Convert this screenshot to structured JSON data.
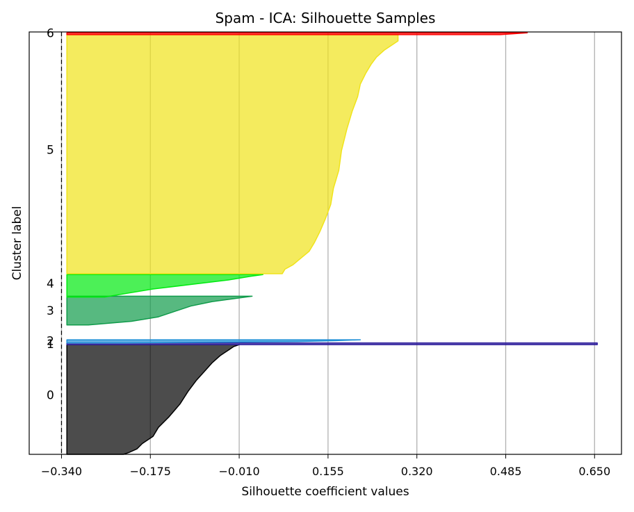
{
  "chart_data": {
    "type": "silhouette",
    "title": "Spam - ICA: Silhouette Samples",
    "xlabel": "Silhouette coefficient values",
    "ylabel": "Cluster label",
    "xlim": [
      -0.4,
      0.7
    ],
    "ylim": [
      0,
      4700
    ],
    "x_ticks": [
      -0.34,
      -0.175,
      -0.01,
      0.155,
      0.32,
      0.485,
      0.65
    ],
    "x_tick_labels": [
      "−0.340",
      "−0.175",
      "−0.010",
      "0.155",
      "0.320",
      "0.485",
      "0.650"
    ],
    "grid": "vertical",
    "average_line": -0.34,
    "clusters": [
      {
        "label": "0",
        "color": "#000000",
        "y_lower": 0,
        "y_upper": 1220,
        "label_y": 660,
        "profile": [
          [
            0,
            -0.225
          ],
          [
            20,
            -0.215
          ],
          [
            60,
            -0.2
          ],
          [
            120,
            -0.19
          ],
          [
            200,
            -0.17
          ],
          [
            300,
            -0.16
          ],
          [
            420,
            -0.14
          ],
          [
            560,
            -0.12
          ],
          [
            700,
            -0.105
          ],
          [
            820,
            -0.09
          ],
          [
            920,
            -0.075
          ],
          [
            1020,
            -0.06
          ],
          [
            1100,
            -0.045
          ],
          [
            1160,
            -0.03
          ],
          [
            1200,
            -0.02
          ],
          [
            1220,
            -0.01
          ]
        ]
      },
      {
        "label": "1",
        "color": "#2f1f9c",
        "y_lower": 1220,
        "y_upper": 1240,
        "label_y": 1230,
        "profile": [
          [
            1220,
            0.655
          ],
          [
            1240,
            0.655
          ]
        ]
      },
      {
        "label": "2",
        "color": "#1f8fd6",
        "y_lower": 1240,
        "y_upper": 1275,
        "label_y": 1262,
        "profile": [
          [
            1240,
            -0.22
          ],
          [
            1255,
            0.1
          ],
          [
            1265,
            0.17
          ],
          [
            1275,
            0.215
          ]
        ]
      },
      {
        "label": "3",
        "color": "#0f9b4a",
        "y_lower": 1440,
        "y_upper": 1760,
        "label_y": 1600,
        "profile": [
          [
            1440,
            -0.29
          ],
          [
            1480,
            -0.21
          ],
          [
            1530,
            -0.16
          ],
          [
            1590,
            -0.13
          ],
          [
            1650,
            -0.1
          ],
          [
            1700,
            -0.06
          ],
          [
            1740,
            -0.01
          ],
          [
            1760,
            0.014
          ]
        ]
      },
      {
        "label": "4",
        "color": "#00ea10",
        "y_lower": 1750,
        "y_upper": 2000,
        "label_y": 1900,
        "profile": [
          [
            1750,
            -0.26
          ],
          [
            1790,
            -0.22
          ],
          [
            1840,
            -0.17
          ],
          [
            1890,
            -0.1
          ],
          [
            1940,
            -0.03
          ],
          [
            1980,
            0.01
          ],
          [
            2000,
            0.034
          ]
        ]
      },
      {
        "label": "5",
        "color": "#f0e31a",
        "y_lower": 2010,
        "y_upper": 4670,
        "label_y": 3390,
        "profile": [
          [
            2010,
            0.07
          ],
          [
            2060,
            0.075
          ],
          [
            2110,
            0.09
          ],
          [
            2160,
            0.1
          ],
          [
            2260,
            0.12
          ],
          [
            2360,
            0.13
          ],
          [
            2480,
            0.14
          ],
          [
            2620,
            0.15
          ],
          [
            2780,
            0.16
          ],
          [
            2960,
            0.165
          ],
          [
            3160,
            0.175
          ],
          [
            3380,
            0.18
          ],
          [
            3620,
            0.19
          ],
          [
            3820,
            0.2
          ],
          [
            3980,
            0.21
          ],
          [
            4120,
            0.215
          ],
          [
            4240,
            0.225
          ],
          [
            4340,
            0.235
          ],
          [
            4420,
            0.245
          ],
          [
            4500,
            0.26
          ],
          [
            4560,
            0.275
          ],
          [
            4600,
            0.285
          ],
          [
            4670,
            0.285
          ]
        ]
      },
      {
        "label": "6",
        "color": "#ff0000",
        "y_lower": 4670,
        "y_upper": 4690,
        "label_y": 4690,
        "profile": [
          [
            4670,
            0.475
          ],
          [
            4690,
            0.525
          ]
        ]
      }
    ]
  }
}
